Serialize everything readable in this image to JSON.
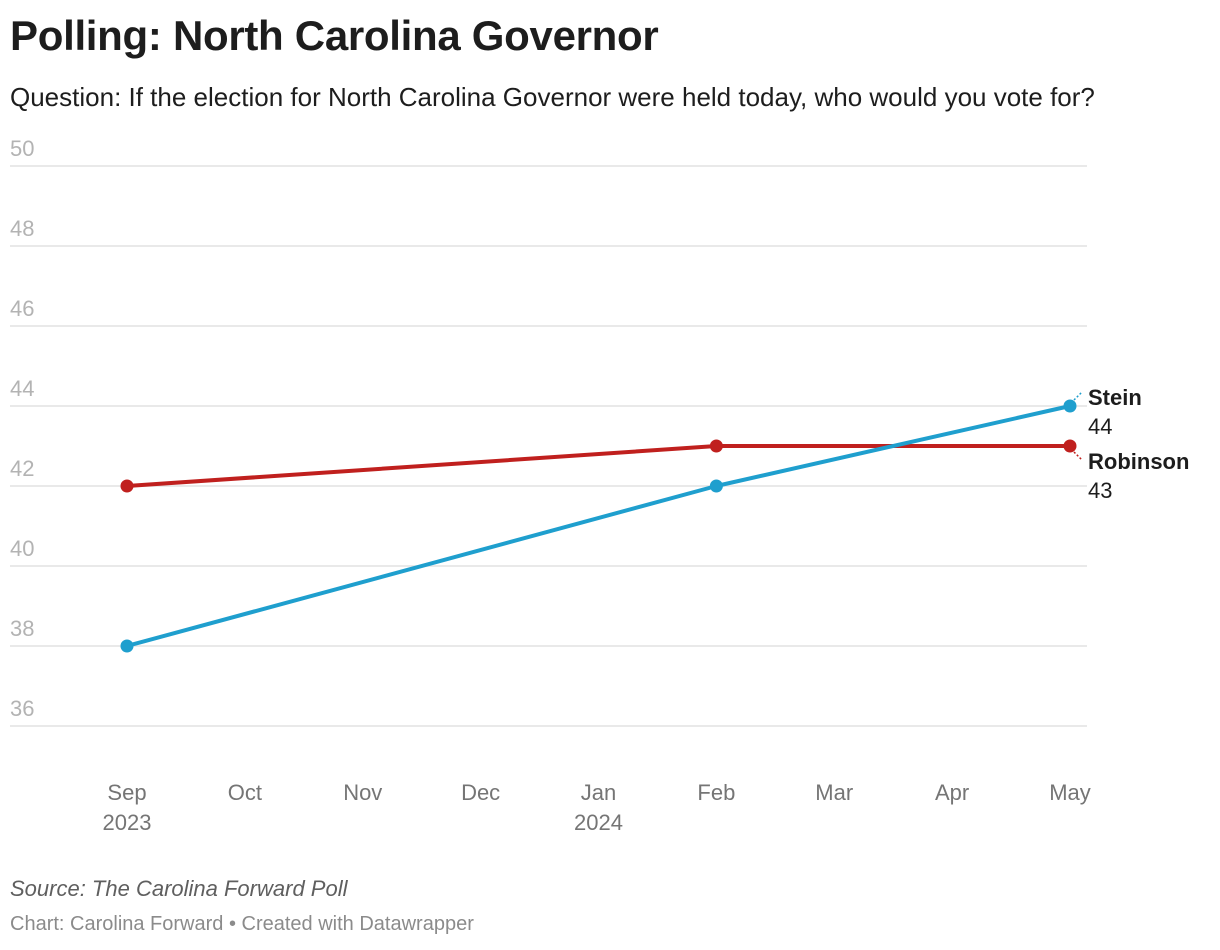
{
  "title": "Polling: North Carolina Governor",
  "subtitle": "Question: If the election for North Carolina Governor were held today, who would you vote for?",
  "footer": {
    "source": "Source: The Carolina Forward Poll",
    "credit": "Chart: Carolina Forward • Created with Datawrapper"
  },
  "chart_data": {
    "type": "line",
    "title": "Polling: North Carolina Governor",
    "xlabel": "",
    "ylabel": "",
    "ylim": [
      36,
      50
    ],
    "yticks": [
      50,
      48,
      46,
      44,
      42,
      40,
      38,
      36
    ],
    "grid": true,
    "x_ticks": [
      {
        "month_index": 0,
        "label": "Sep",
        "sublabel": "2023"
      },
      {
        "month_index": 1,
        "label": "Oct",
        "sublabel": ""
      },
      {
        "month_index": 2,
        "label": "Nov",
        "sublabel": ""
      },
      {
        "month_index": 3,
        "label": "Dec",
        "sublabel": ""
      },
      {
        "month_index": 4,
        "label": "Jan",
        "sublabel": "2024"
      },
      {
        "month_index": 5,
        "label": "Feb",
        "sublabel": ""
      },
      {
        "month_index": 6,
        "label": "Mar",
        "sublabel": ""
      },
      {
        "month_index": 7,
        "label": "Apr",
        "sublabel": ""
      },
      {
        "month_index": 8,
        "label": "May",
        "sublabel": ""
      }
    ],
    "x": [
      "2023-09",
      "2024-02",
      "2024-05"
    ],
    "x_month_index": [
      0,
      5,
      8
    ],
    "series": [
      {
        "name": "Robinson",
        "color": "#c0201e",
        "values": [
          42,
          43,
          43
        ],
        "label_value": "43"
      },
      {
        "name": "Stein",
        "color": "#1f9fce",
        "values": [
          38,
          42,
          44
        ],
        "label_value": "44"
      }
    ]
  }
}
